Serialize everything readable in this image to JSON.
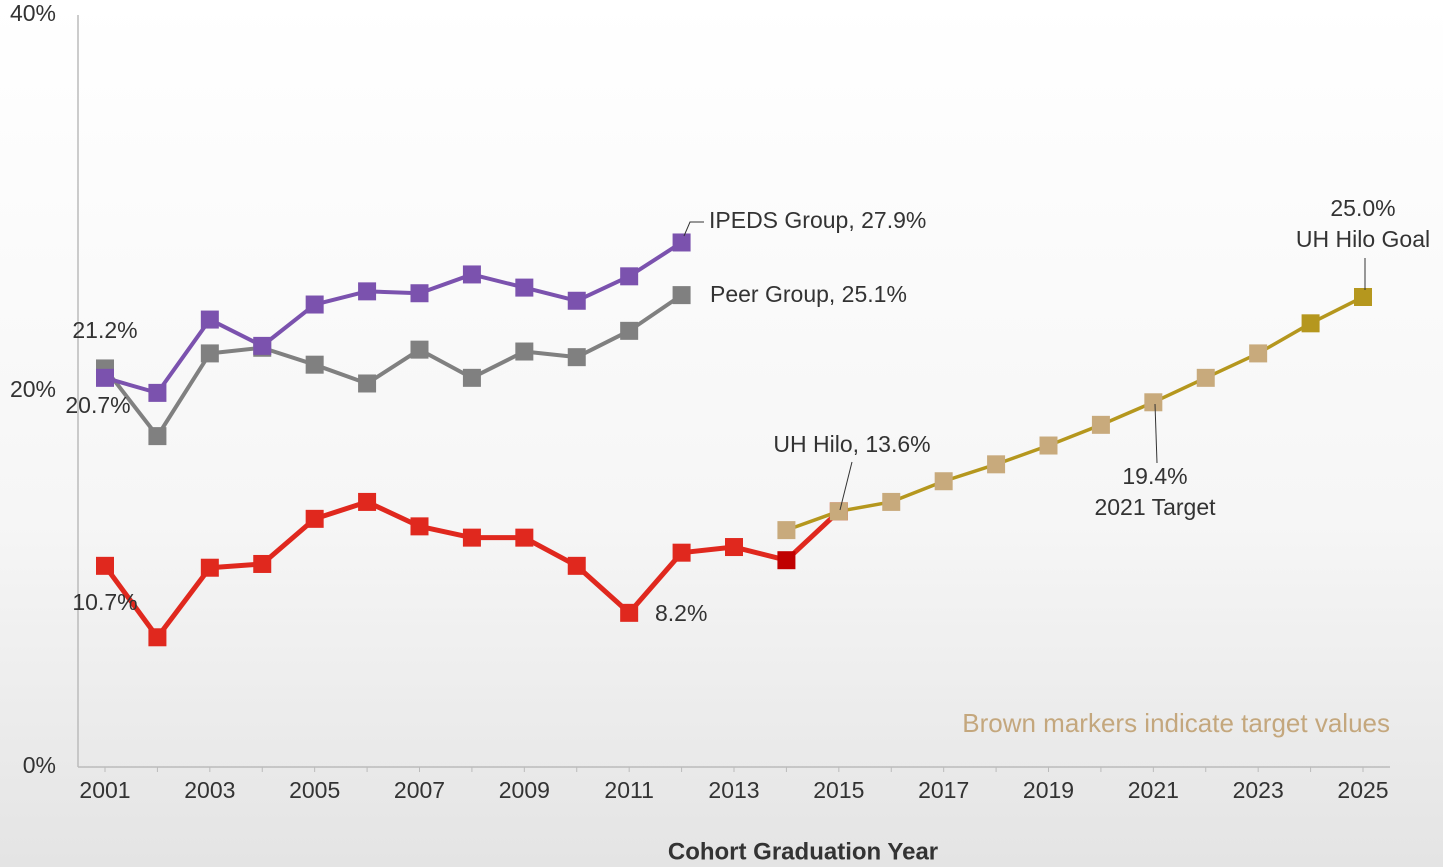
{
  "chart_data": {
    "type": "line",
    "x_label": "Cohort Graduation Year",
    "categories": [
      "2001",
      null,
      "2003",
      null,
      "2005",
      null,
      "2007",
      null,
      "2009",
      null,
      "2011",
      null,
      "2013",
      null,
      "2015",
      null,
      "2017",
      null,
      "2019",
      null,
      "2021",
      null,
      "2023",
      null,
      "2025"
    ],
    "ylim": [
      0,
      40
    ],
    "yticks": [
      {
        "value": 0,
        "label": "0%"
      },
      {
        "value": 20,
        "label": "20%"
      },
      {
        "value": 40,
        "label": "40%"
      }
    ],
    "series": [
      {
        "color": "#808080",
        "marker_colors": [
          "#808080"
        ],
        "values": [
          21.2,
          17.6,
          22.0,
          22.3,
          21.4,
          20.4,
          22.2,
          20.7,
          22.1,
          21.8,
          23.2,
          25.1,
          null,
          null,
          null,
          null,
          null,
          null,
          null,
          null,
          null,
          null,
          null,
          null,
          null
        ]
      },
      {
        "color": "#7b52ae",
        "marker_colors": [
          "#7b52ae"
        ],
        "values": [
          20.7,
          19.9,
          23.8,
          22.4,
          24.6,
          25.3,
          25.2,
          26.2,
          25.5,
          24.8,
          26.1,
          27.9,
          null,
          null,
          null,
          null,
          null,
          null,
          null,
          null,
          null,
          null,
          null,
          null,
          null
        ]
      },
      {
        "color": "#e0281e",
        "marker_colors": [
          "#e0281e",
          "#e0281e",
          "#e0281e",
          "#e0281e",
          "#e0281e",
          "#e0281e",
          "#e0281e",
          "#e0281e",
          "#e0281e",
          "#e0281e",
          "#e0281e",
          "#e0281e",
          "#e0281e",
          "#c00000",
          "#e0281e"
        ],
        "values": [
          10.7,
          6.9,
          10.6,
          10.8,
          13.2,
          14.1,
          12.8,
          12.2,
          12.2,
          10.7,
          8.2,
          11.4,
          11.7,
          11.0,
          13.6,
          null,
          null,
          null,
          null,
          null,
          null,
          null,
          null,
          null,
          null
        ]
      },
      {
        "color": "#b5971e",
        "marker_colors": [
          "#c8aa7c",
          "#c8aa7c",
          "#c8aa7c",
          "#c8aa7c",
          "#c8aa7c",
          "#c8aa7c",
          "#c8aa7c",
          "#c8aa7c",
          "#c8aa7c",
          "#c8aa7c",
          "#b5971e",
          "#b5971e"
        ],
        "values": [
          null,
          null,
          null,
          null,
          null,
          null,
          null,
          null,
          null,
          null,
          null,
          null,
          null,
          12.6,
          13.6,
          14.1,
          15.2,
          16.1,
          17.1,
          18.2,
          19.4,
          20.7,
          22.0,
          23.6,
          25.0
        ]
      }
    ],
    "annotations": [
      "21.2%",
      "20.7%",
      "10.7%",
      "8.2%",
      "IPEDS Group, 27.9%",
      "Peer Group, 25.1%",
      "UH Hilo, 13.6%",
      "19.4%",
      "2021 Target",
      "25.0%",
      "UH Hilo Goal",
      "Brown markers indicate target values"
    ]
  }
}
